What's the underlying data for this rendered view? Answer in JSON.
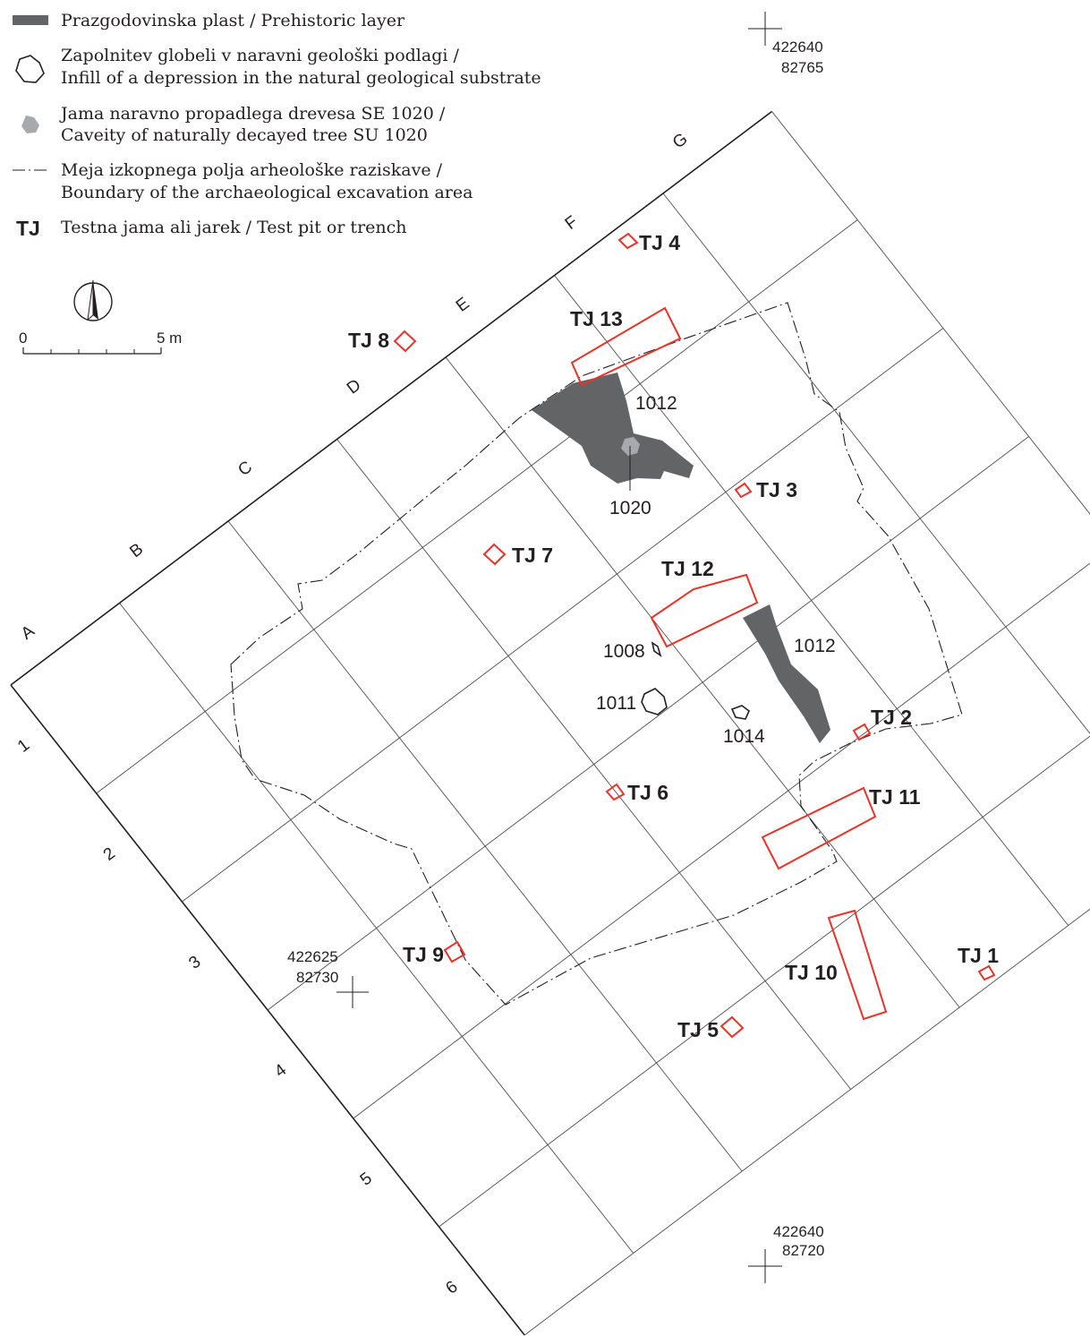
{
  "legend": {
    "prehistoric_layer": "Prazgodovinska plast / Prehistoric layer",
    "infill_line1": "Zapolnitev globeli v naravni geološki podlagi /",
    "infill_line2": "Infill of a depression in the natural geological substrate",
    "tree_line1": "Jama naravno propadlega drevesa SE 1020 /",
    "tree_line2": "Caveity of naturally decayed tree SU 1020",
    "boundary_line1": "Meja izkopnega polja arheološke raziskave /",
    "boundary_line2": "Boundary of the archaeological excavation area",
    "tj_symbol": "TJ",
    "tj_text": "Testna jama ali jarek / Test pit or trench",
    "colors": {
      "pit": "#e8332a",
      "prehistoric": "#636466",
      "tree": "#a7a9ac"
    }
  },
  "scale_bar": {
    "start": "0",
    "end": "5 m"
  },
  "north_arrow": {
    "icon": "north-arrow-icon"
  },
  "grid": {
    "columns": [
      "A",
      "B",
      "C",
      "D",
      "E",
      "F",
      "G"
    ],
    "rows": [
      "1",
      "2",
      "3",
      "4",
      "5",
      "6"
    ]
  },
  "coordinates": [
    {
      "east": "422640",
      "north": "82765"
    },
    {
      "east": "422625",
      "north": "82730"
    },
    {
      "east": "422640",
      "north": "82720"
    }
  ],
  "test_pits": [
    "TJ 1",
    "TJ 2",
    "TJ 3",
    "TJ 4",
    "TJ 5",
    "TJ 6",
    "TJ 7",
    "TJ 8",
    "TJ 9",
    "TJ 10",
    "TJ 11",
    "TJ 12",
    "TJ 13"
  ],
  "features": [
    "1012",
    "1020",
    "1012",
    "1008",
    "1011",
    "1014"
  ]
}
